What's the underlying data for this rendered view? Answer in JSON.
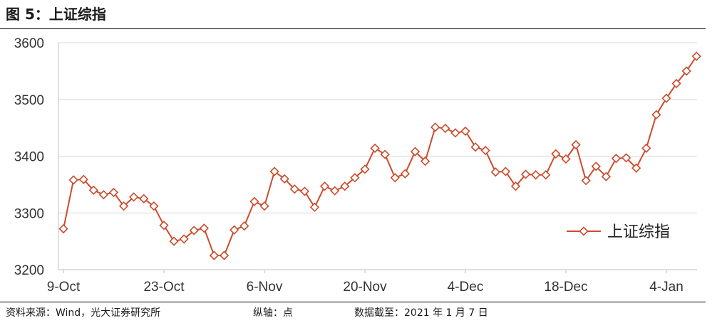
{
  "header": {
    "title": "图 5：上证综指"
  },
  "footer": {
    "source": "资料来源：Wind，光大证券研究所",
    "axis_note": "纵轴：点",
    "date_note": "数据截至：2021 年 1 月 7 日"
  },
  "colors": {
    "series": "#CC4B2C",
    "grid": "#D9D9D9",
    "axis": "#BFBFBF"
  },
  "chart_data": {
    "type": "line",
    "title": "",
    "xlabel": "",
    "ylabel": "",
    "ylim": [
      3200,
      3600
    ],
    "yticks": [
      3200,
      3300,
      3400,
      3500,
      3600
    ],
    "grid": "horizontal",
    "legend_position": "bottom-right",
    "marker": "diamond",
    "x_tick_labels": [
      "9-Oct",
      "23-Oct",
      "6-Nov",
      "20-Nov",
      "4-Dec",
      "18-Dec",
      "4-Jan"
    ],
    "x_tick_index": [
      0,
      10,
      20,
      30,
      40,
      50,
      60
    ],
    "series": [
      {
        "name": "上证综指",
        "values": [
          3272,
          3358,
          3359,
          3340,
          3332,
          3336,
          3312,
          3328,
          3325,
          3312,
          3278,
          3250,
          3254,
          3269,
          3273,
          3225,
          3225,
          3270,
          3277,
          3320,
          3312,
          3373,
          3360,
          3342,
          3338,
          3310,
          3347,
          3339,
          3347,
          3362,
          3377,
          3414,
          3403,
          3362,
          3369,
          3408,
          3391,
          3451,
          3449,
          3441,
          3444,
          3416,
          3410,
          3372,
          3373,
          3347,
          3368,
          3367,
          3367,
          3404,
          3395,
          3420,
          3357,
          3382,
          3364,
          3396,
          3397,
          3379,
          3414,
          3473,
          3502,
          3528,
          3550,
          3576
        ]
      }
    ]
  }
}
